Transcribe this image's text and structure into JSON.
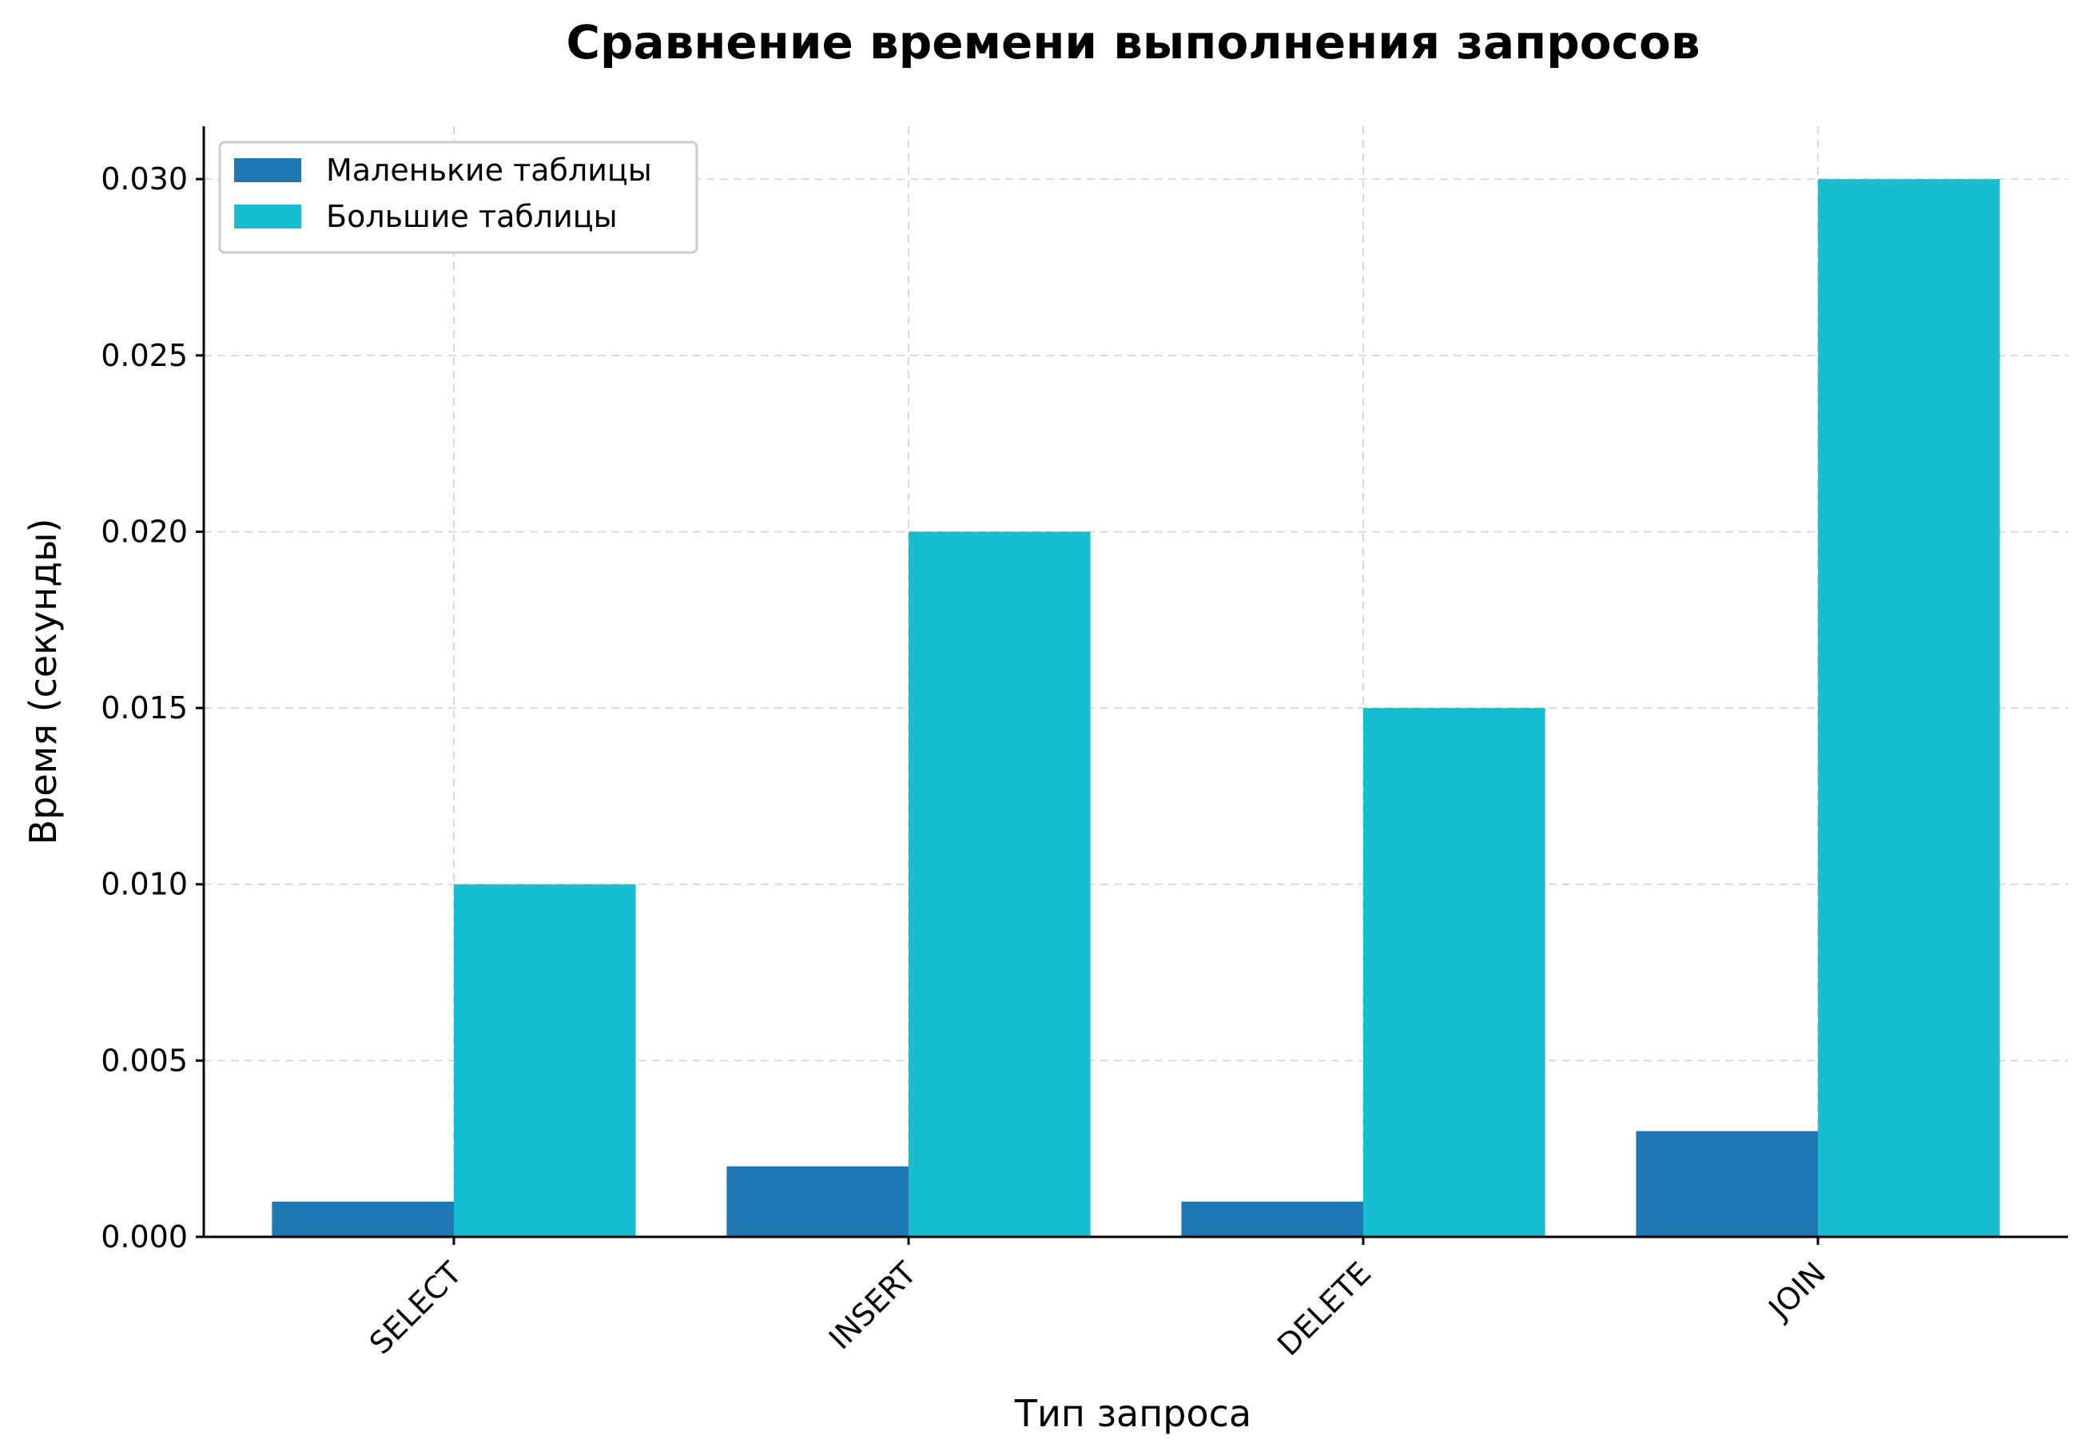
{
  "chart_data": {
    "type": "bar",
    "title": "Сравнение времени выполнения запросов",
    "xlabel": "Тип запроса",
    "ylabel": "Время (секунды)",
    "categories": [
      "SELECT",
      "INSERT",
      "DELETE",
      "JOIN"
    ],
    "series": [
      {
        "name": "Маленькие таблицы",
        "color": "#1f77b4",
        "values": [
          0.001,
          0.002,
          0.001,
          0.003
        ]
      },
      {
        "name": "Большие таблицы",
        "color": "#17becf",
        "values": [
          0.01,
          0.02,
          0.015,
          0.03
        ]
      }
    ],
    "ylim": [
      0,
      0.0315
    ],
    "yticks": [
      0.0,
      0.005,
      0.01,
      0.015,
      0.02,
      0.025,
      0.03
    ],
    "ytick_labels": [
      "0.000",
      "0.005",
      "0.010",
      "0.015",
      "0.020",
      "0.025",
      "0.030"
    ],
    "grid": true,
    "legend_position": "top-left"
  }
}
